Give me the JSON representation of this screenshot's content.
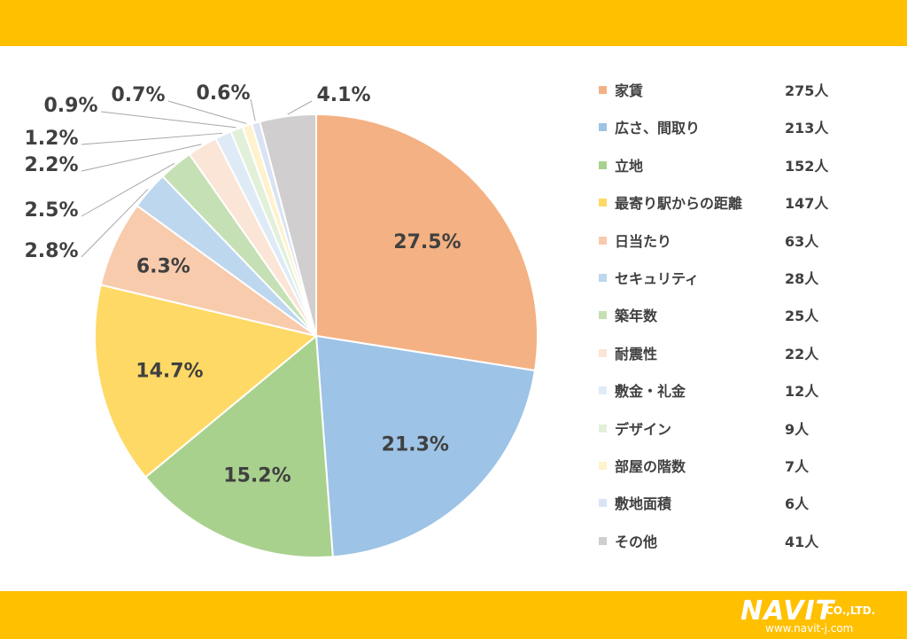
{
  "theme": {
    "band_color": "#FFC000",
    "text_color": "#404040",
    "label_color": "#404040"
  },
  "chart_data": {
    "type": "pie",
    "categories": [
      "家賃",
      "広さ、間取り",
      "立地",
      "最寄り駅からの距離",
      "日当たり",
      "セキュリティ",
      "築年数",
      "耐震性",
      "敷金・礼金",
      "デザイン",
      "部屋の階数",
      "敷地面積",
      "その他"
    ],
    "values": [
      27.5,
      21.3,
      15.2,
      14.7,
      6.3,
      2.8,
      2.5,
      2.2,
      1.2,
      0.9,
      0.7,
      0.6,
      4.1
    ],
    "percent_labels": [
      "27.5%",
      "21.3%",
      "15.2%",
      "14.7%",
      "6.3%",
      "2.8%",
      "2.5%",
      "2.2%",
      "1.2%",
      "0.9%",
      "0.7%",
      "0.6%",
      "4.1%"
    ],
    "counts": [
      "275人",
      "213人",
      "152人",
      "147人",
      "63人",
      "28人",
      "25人",
      "22人",
      "12人",
      "9人",
      "7人",
      "6人",
      "41人"
    ],
    "colors": [
      "#F4B183",
      "#9DC3E6",
      "#A9D18E",
      "#FFD966",
      "#F8CBAD",
      "#BDD7EE",
      "#C5E0B4",
      "#FBE5D6",
      "#DEEBF7",
      "#E2F0D9",
      "#FFF2CC",
      "#DAE3F3",
      "#D0CECE"
    ],
    "legend_placement": "right",
    "start_angle": "12 o'clock, clockwise"
  },
  "logo": {
    "name": "NAVIT",
    "suffix": "CO.,LTD.",
    "url": "www.navit-j.com"
  }
}
